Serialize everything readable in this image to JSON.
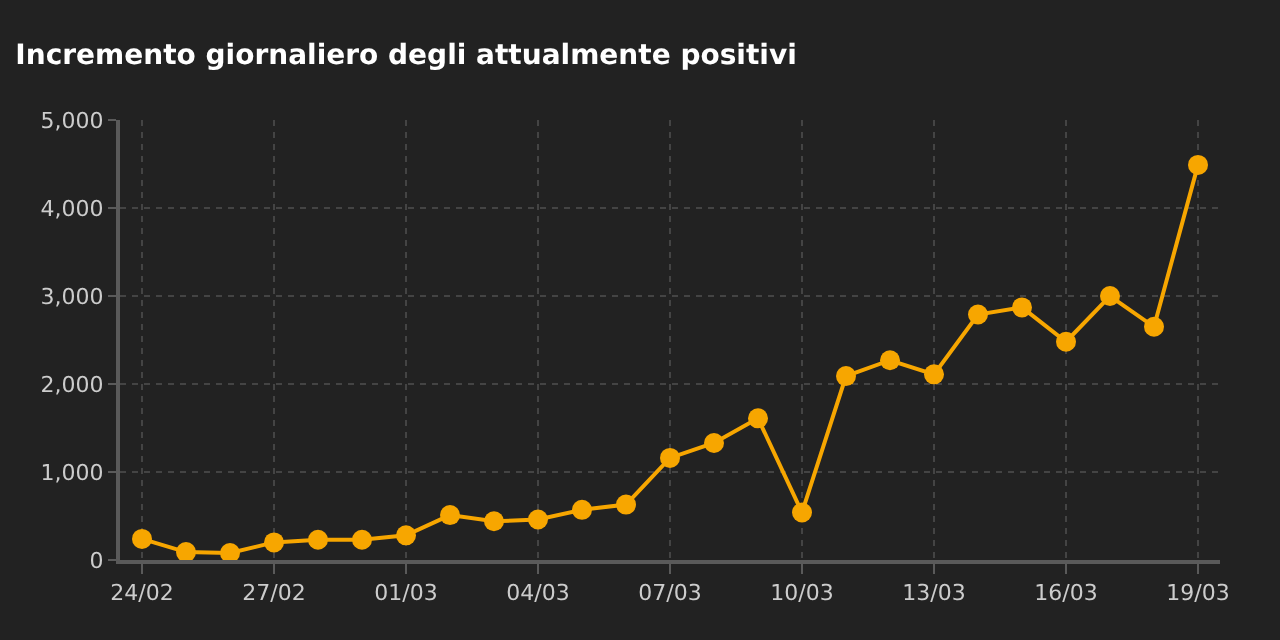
{
  "chart_data": {
    "type": "line",
    "title": "Incremento giornaliero degli attualmente positivi",
    "x": [
      "--02-24",
      "--02-25",
      "--02-26",
      "--02-27",
      "--02-28",
      "--02-29",
      "--03-01",
      "--03-02",
      "--03-03",
      "--03-04",
      "--03-05",
      "--03-06",
      "--03-07",
      "--03-08",
      "--03-09",
      "--03-10",
      "--03-11",
      "--03-12",
      "--03-13",
      "--03-14",
      "--03-15",
      "--03-16",
      "--03-17",
      "--03-18",
      "--03-19"
    ],
    "series": [
      {
        "color": "#f7a600",
        "values": [
          240,
          90,
          80,
          200,
          230,
          230,
          280,
          510,
          440,
          460,
          570,
          630,
          1160,
          1330,
          1610,
          540,
          2090,
          2270,
          2110,
          2790,
          2870,
          2480,
          3000,
          2650,
          4490
        ]
      }
    ],
    "xlim": [
      "--02-23T12:00",
      "--03-19T12:00"
    ],
    "xticks": [
      {
        "value": "--02-24",
        "label": "24/02"
      },
      {
        "value": "--02-27",
        "label": "27/02"
      },
      {
        "value": "--03-01",
        "label": "01/03"
      },
      {
        "value": "--03-04",
        "label": "04/03"
      },
      {
        "value": "--03-07",
        "label": "07/03"
      },
      {
        "value": "--03-10",
        "label": "10/03"
      },
      {
        "value": "--03-13",
        "label": "13/03"
      },
      {
        "value": "--03-16",
        "label": "16/03"
      },
      {
        "value": "--03-19",
        "label": "19/03"
      }
    ],
    "ylim": [
      0,
      5000
    ],
    "yticks": [
      {
        "value": 0,
        "label": "0"
      },
      {
        "value": 1000,
        "label": "1,000"
      },
      {
        "value": 2000,
        "label": "2,000"
      },
      {
        "value": 3000,
        "label": "3,000"
      },
      {
        "value": 4000,
        "label": "4,000"
      },
      {
        "value": 5000,
        "label": "5,000"
      }
    ],
    "grid": true,
    "marker": "circle",
    "line_style": "solid"
  }
}
